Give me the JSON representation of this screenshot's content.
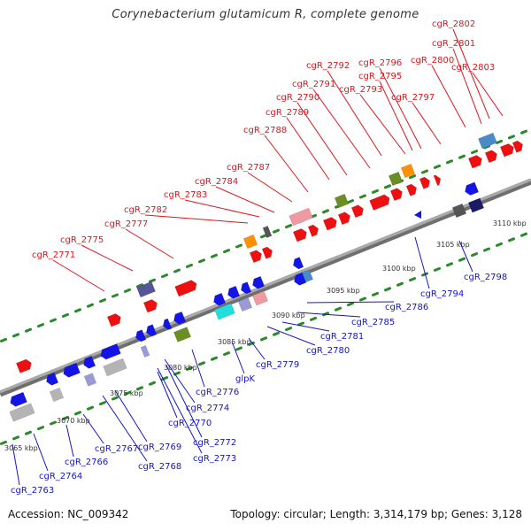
{
  "title": "Corynebacterium glutamicum R, complete genome",
  "footer": {
    "accession": "Accession: NC_009342",
    "summary": "Topology: circular; Length: 3,314,179 bp; Genes: 3,128"
  },
  "colors": {
    "forward_label": "#e0141a",
    "reverse_label": "#1515c8",
    "backbone": "#888888",
    "dots": "#2a8a2a",
    "red": "#ee1010",
    "blue": "#1414e6",
    "navy": "#1a1a66",
    "purple": "#55559a",
    "orange": "#ff9000",
    "olive": "#6b8e23",
    "gray": "#b4b4b4",
    "darkgray": "#555555",
    "pink": "#ee9aa0",
    "cyan": "#22dddd",
    "steel": "#4a8ac8",
    "lavender": "#9a9ad8"
  },
  "scale_labels": [
    "3065 kbp",
    "3070 kbp",
    "3075 kbp",
    "3080 kbp",
    "3085 kbp",
    "3090 kbp",
    "3095 kbp",
    "3100 kbp",
    "3105 kbp",
    "3110 kbp"
  ],
  "forward_genes": [
    "cgR_2771",
    "cgR_2775",
    "cgR_2777",
    "cgR_2782",
    "cgR_2783",
    "cgR_2784",
    "cgR_2787",
    "cgR_2788",
    "cgR_2789",
    "cgR_2790",
    "cgR_2791",
    "cgR_2792",
    "cgR_2793",
    "cgR_2795",
    "cgR_2796",
    "cgR_2797",
    "cgR_2800",
    "cgR_2801",
    "cgR_2802",
    "cgR_2803"
  ],
  "reverse_genes": [
    "cgR_2763",
    "cgR_2764",
    "cgR_2766",
    "cgR_2767",
    "cgR_2768",
    "cgR_2769",
    "cgR_2770",
    "cgR_2772",
    "cgR_2773",
    "cgR_2774",
    "cgR_2776",
    "glpK",
    "cgR_2779",
    "cgR_2780",
    "cgR_2781",
    "cgR_2785",
    "cgR_2786",
    "cgR_2794",
    "cgR_2798"
  ]
}
